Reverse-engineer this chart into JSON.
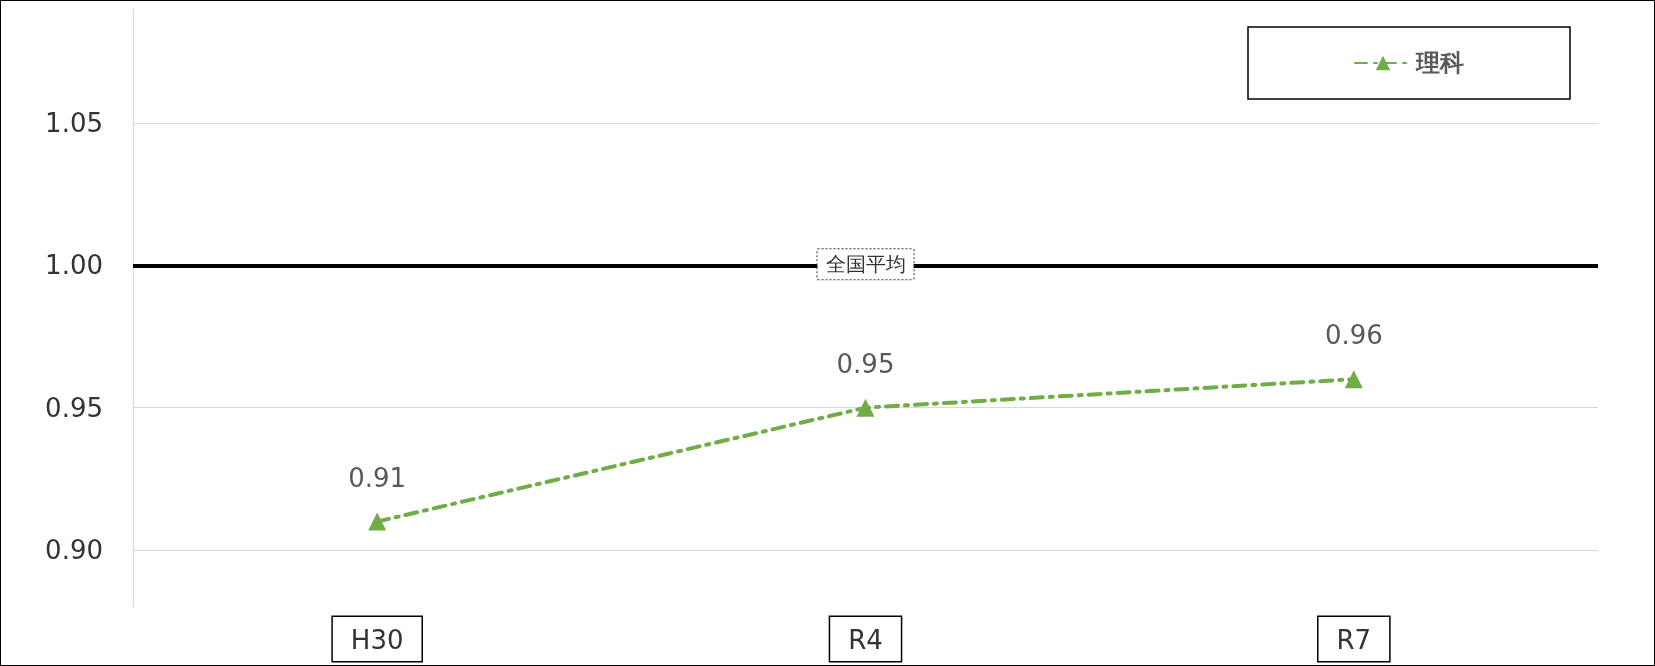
{
  "chart_data": {
    "type": "line",
    "categories": [
      "H30",
      "R4",
      "R7"
    ],
    "series": [
      {
        "name": "理科",
        "color": "#70ad47",
        "values": [
          0.91,
          0.95,
          0.96
        ]
      }
    ],
    "ylim": [
      0.88,
      1.09
    ],
    "yticks": [
      {
        "value": 0.9,
        "label": "0.90"
      },
      {
        "value": 0.95,
        "label": "0.95"
      },
      {
        "value": 1.0,
        "label": "1.00"
      },
      {
        "value": 1.05,
        "label": "1.05"
      }
    ],
    "grid": "y",
    "legend": "top right",
    "marker": "triangle",
    "line_style": "dashed",
    "data_labels": true,
    "ref_lines": [
      {
        "axis": "y",
        "value": 1.0,
        "label": "全国平均",
        "color": "#000000"
      }
    ]
  }
}
